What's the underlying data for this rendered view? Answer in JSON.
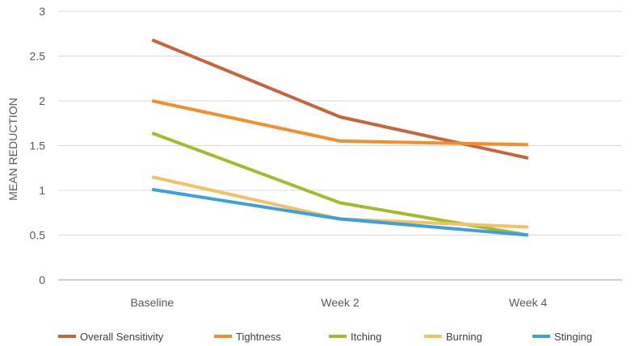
{
  "chart_data": {
    "type": "line",
    "title": "",
    "xlabel": "",
    "ylabel": "MEAN REDUCTION",
    "categories": [
      "Baseline",
      "Week 2",
      "Week 4"
    ],
    "ylim": [
      0,
      3
    ],
    "yticks": [
      "0",
      "0.5",
      "1",
      "1.5",
      "2",
      "2.5",
      "3"
    ],
    "grid": true,
    "legend": "bottom",
    "series": [
      {
        "name": "Overall Sensitivity",
        "color": "#C8643B",
        "values": [
          2.68,
          1.82,
          1.36
        ]
      },
      {
        "name": "Tightness",
        "color": "#F28E2B",
        "values": [
          2.0,
          1.55,
          1.51
        ]
      },
      {
        "name": "Itching",
        "color": "#A5BA2F",
        "values": [
          1.64,
          0.86,
          0.5
        ]
      },
      {
        "name": "Burning",
        "color": "#F2C162",
        "values": [
          1.15,
          0.68,
          0.59
        ]
      },
      {
        "name": "Stinging",
        "color": "#3AA0DE",
        "values": [
          1.01,
          0.68,
          0.5
        ]
      }
    ]
  }
}
